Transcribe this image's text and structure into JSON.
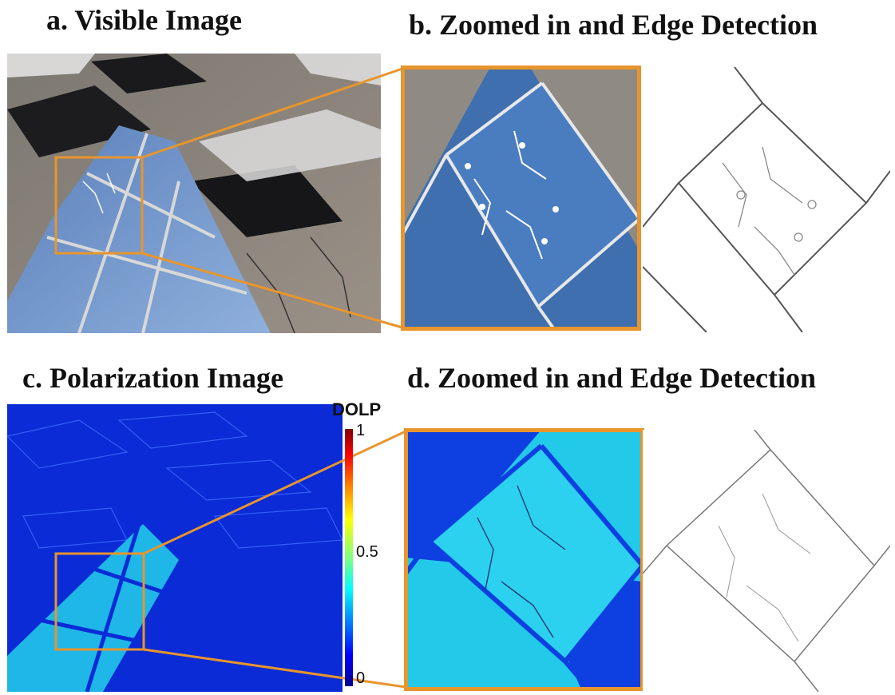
{
  "captions": {
    "a": "a. Visible Image",
    "b": "b. Zoomed in and Edge Detection",
    "c": "c. Polarization Image",
    "d": "d. Zoomed in and Edge Detection"
  },
  "colorbar": {
    "title": "DOLP",
    "max_label": "1",
    "mid_label": "0.5",
    "min_label": "0",
    "range": [
      0,
      1
    ],
    "colormap": "jet"
  },
  "colors": {
    "highlight_box": "#e8952d",
    "panel_blue": "#3f6fae",
    "dolp_background": "#0a2bd6",
    "dolp_panel": "#22c4e6"
  }
}
